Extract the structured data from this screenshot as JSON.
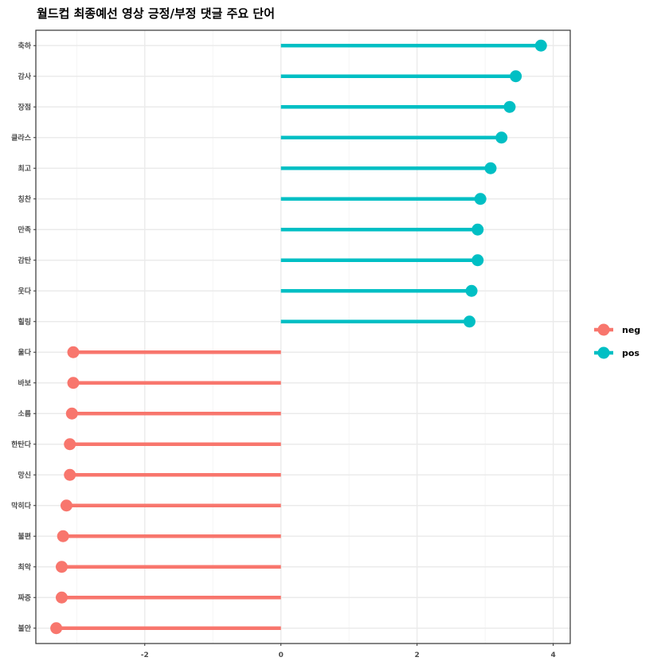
{
  "chart_data": {
    "type": "lollipop",
    "title": "월드컵 최종예선 영상 긍정/부정 댓글 주요 단어",
    "xlabel": "",
    "ylabel": "",
    "xlim": [
      -3.6,
      4.25
    ],
    "xticks": [
      -2,
      0,
      2,
      4
    ],
    "grid": true,
    "legend_position": "right",
    "colors": {
      "neg": "#F8766D",
      "pos": "#00BFC4"
    },
    "series": [
      {
        "name": "neg",
        "color": "#F8766D"
      },
      {
        "name": "pos",
        "color": "#00BFC4"
      }
    ],
    "points": [
      {
        "word": "축하",
        "value": 3.82,
        "sentiment": "pos"
      },
      {
        "word": "감사",
        "value": 3.45,
        "sentiment": "pos"
      },
      {
        "word": "장점",
        "value": 3.36,
        "sentiment": "pos"
      },
      {
        "word": "클라스",
        "value": 3.24,
        "sentiment": "pos"
      },
      {
        "word": "최고",
        "value": 3.08,
        "sentiment": "pos"
      },
      {
        "word": "칭찬",
        "value": 2.93,
        "sentiment": "pos"
      },
      {
        "word": "만족",
        "value": 2.89,
        "sentiment": "pos"
      },
      {
        "word": "감탄",
        "value": 2.89,
        "sentiment": "pos"
      },
      {
        "word": "웃다",
        "value": 2.8,
        "sentiment": "pos"
      },
      {
        "word": "힐링",
        "value": 2.77,
        "sentiment": "pos"
      },
      {
        "word": "울다",
        "value": -3.05,
        "sentiment": "neg"
      },
      {
        "word": "바보",
        "value": -3.05,
        "sentiment": "neg"
      },
      {
        "word": "소름",
        "value": -3.07,
        "sentiment": "neg"
      },
      {
        "word": "한탄다",
        "value": -3.1,
        "sentiment": "neg"
      },
      {
        "word": "망신",
        "value": -3.1,
        "sentiment": "neg"
      },
      {
        "word": "막히다",
        "value": -3.15,
        "sentiment": "neg"
      },
      {
        "word": "불편",
        "value": -3.2,
        "sentiment": "neg"
      },
      {
        "word": "최악",
        "value": -3.22,
        "sentiment": "neg"
      },
      {
        "word": "짜증",
        "value": -3.22,
        "sentiment": "neg"
      },
      {
        "word": "불안",
        "value": -3.3,
        "sentiment": "neg"
      }
    ]
  }
}
